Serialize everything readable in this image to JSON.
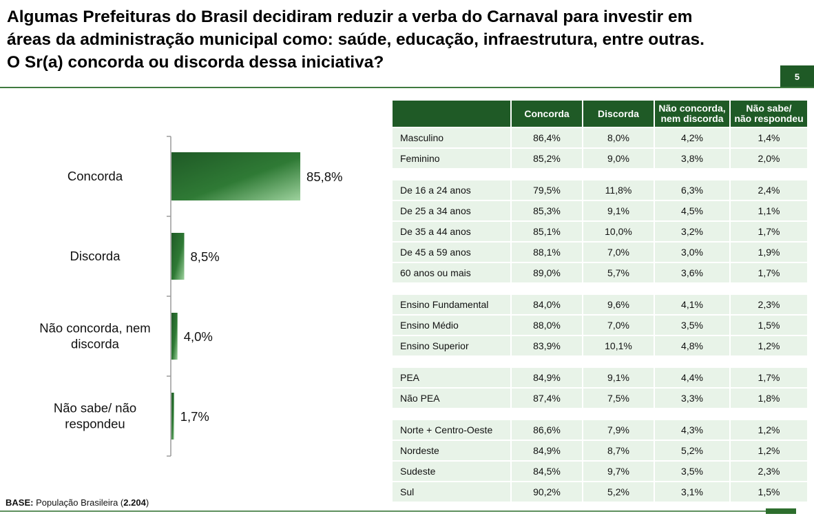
{
  "title": {
    "line1": "Algumas Prefeituras do Brasil decidiram reduzir a verba do Carnaval para investir em",
    "line2": "áreas da administração municipal como: saúde, educação, infraestrutura, entre outras.",
    "line3": "O Sr(a) concorda ou discorda dessa iniciativa?"
  },
  "page_number": "5",
  "base_note": {
    "label": "BASE:",
    "text": "População Brasileira (",
    "count": "2.204",
    "close": ")"
  },
  "colors": {
    "bar_dark": "#1f5a26",
    "bar_light": "#9ed29e",
    "header_bg": "#1f5a26",
    "row_bg": "#e8f3e8"
  },
  "chart_data": {
    "type": "bar",
    "orientation": "horizontal",
    "categories": [
      [
        "Concorda"
      ],
      [
        "Discorda"
      ],
      [
        "Não concorda, nem",
        "discorda"
      ],
      [
        "Não sabe/ não",
        "respondeu"
      ]
    ],
    "values": [
      85.8,
      8.5,
      4.0,
      1.7
    ],
    "value_labels": [
      "85,8%",
      "8,5%",
      "4,0%",
      "1,7%"
    ],
    "xlim": [
      0,
      100
    ],
    "grid": false,
    "legend": "none"
  },
  "table": {
    "headers": [
      "",
      "Concorda",
      "Discorda",
      [
        "Não concorda,",
        "nem discorda"
      ],
      [
        "Não sabe/",
        "não respondeu"
      ]
    ],
    "groups": [
      [
        [
          "Masculino",
          "86,4%",
          "8,0%",
          "4,2%",
          "1,4%"
        ],
        [
          "Feminino",
          "85,2%",
          "9,0%",
          "3,8%",
          "2,0%"
        ]
      ],
      [
        [
          "De 16 a 24 anos",
          "79,5%",
          "11,8%",
          "6,3%",
          "2,4%"
        ],
        [
          "De 25 a 34 anos",
          "85,3%",
          "9,1%",
          "4,5%",
          "1,1%"
        ],
        [
          "De 35 a 44 anos",
          "85,1%",
          "10,0%",
          "3,2%",
          "1,7%"
        ],
        [
          "De 45 a 59 anos",
          "88,1%",
          "7,0%",
          "3,0%",
          "1,9%"
        ],
        [
          "60 anos ou mais",
          "89,0%",
          "5,7%",
          "3,6%",
          "1,7%"
        ]
      ],
      [
        [
          "Ensino Fundamental",
          "84,0%",
          "9,6%",
          "4,1%",
          "2,3%"
        ],
        [
          "Ensino Médio",
          "88,0%",
          "7,0%",
          "3,5%",
          "1,5%"
        ],
        [
          "Ensino Superior",
          "83,9%",
          "10,1%",
          "4,8%",
          "1,2%"
        ]
      ],
      [
        [
          "PEA",
          "84,9%",
          "9,1%",
          "4,4%",
          "1,7%"
        ],
        [
          "Não PEA",
          "87,4%",
          "7,5%",
          "3,3%",
          "1,8%"
        ]
      ],
      [
        [
          "Norte + Centro-Oeste",
          "86,6%",
          "7,9%",
          "4,3%",
          "1,2%"
        ],
        [
          "Nordeste",
          "84,9%",
          "8,7%",
          "5,2%",
          "1,2%"
        ],
        [
          "Sudeste",
          "84,5%",
          "9,7%",
          "3,5%",
          "2,3%"
        ],
        [
          "Sul",
          "90,2%",
          "5,2%",
          "3,1%",
          "1,5%"
        ]
      ]
    ]
  }
}
